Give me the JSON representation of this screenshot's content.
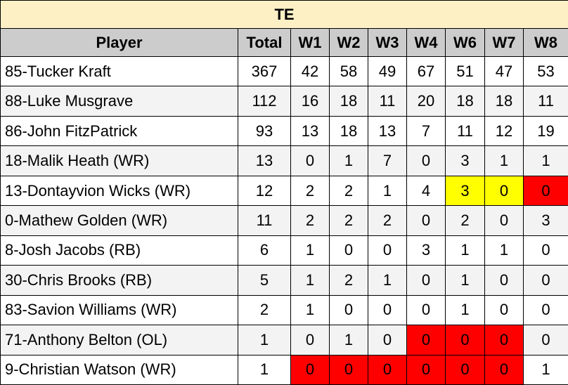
{
  "table": {
    "title": "TE",
    "columns": [
      "Player",
      "Total",
      "W1",
      "W2",
      "W3",
      "W4",
      "W6",
      "W7",
      "W8"
    ],
    "rows": [
      [
        "85-Tucker Kraft",
        367,
        42,
        58,
        49,
        67,
        51,
        47,
        53
      ],
      [
        "88-Luke Musgrave",
        112,
        16,
        18,
        11,
        20,
        18,
        18,
        11
      ],
      [
        "86-John FitzPatrick",
        93,
        13,
        18,
        13,
        7,
        11,
        12,
        19
      ],
      [
        "18-Malik Heath (WR)",
        13,
        0,
        1,
        7,
        0,
        3,
        1,
        1
      ],
      [
        "13-Dontayvion Wicks (WR)",
        12,
        2,
        2,
        1,
        4,
        3,
        0,
        0
      ],
      [
        "0-Mathew Golden (WR)",
        11,
        2,
        2,
        2,
        0,
        2,
        0,
        3
      ],
      [
        "8-Josh Jacobs (RB)",
        6,
        1,
        0,
        0,
        3,
        1,
        1,
        0
      ],
      [
        "30-Chris Brooks (RB)",
        5,
        1,
        2,
        1,
        0,
        1,
        0,
        0
      ],
      [
        "83-Savion Williams (WR)",
        2,
        1,
        0,
        0,
        0,
        1,
        0,
        0
      ],
      [
        "71-Anthony Belton (OL)",
        1,
        0,
        1,
        0,
        0,
        0,
        0,
        0
      ],
      [
        "9-Christian Watson (WR)",
        1,
        0,
        0,
        0,
        0,
        0,
        0,
        1
      ]
    ]
  }
}
